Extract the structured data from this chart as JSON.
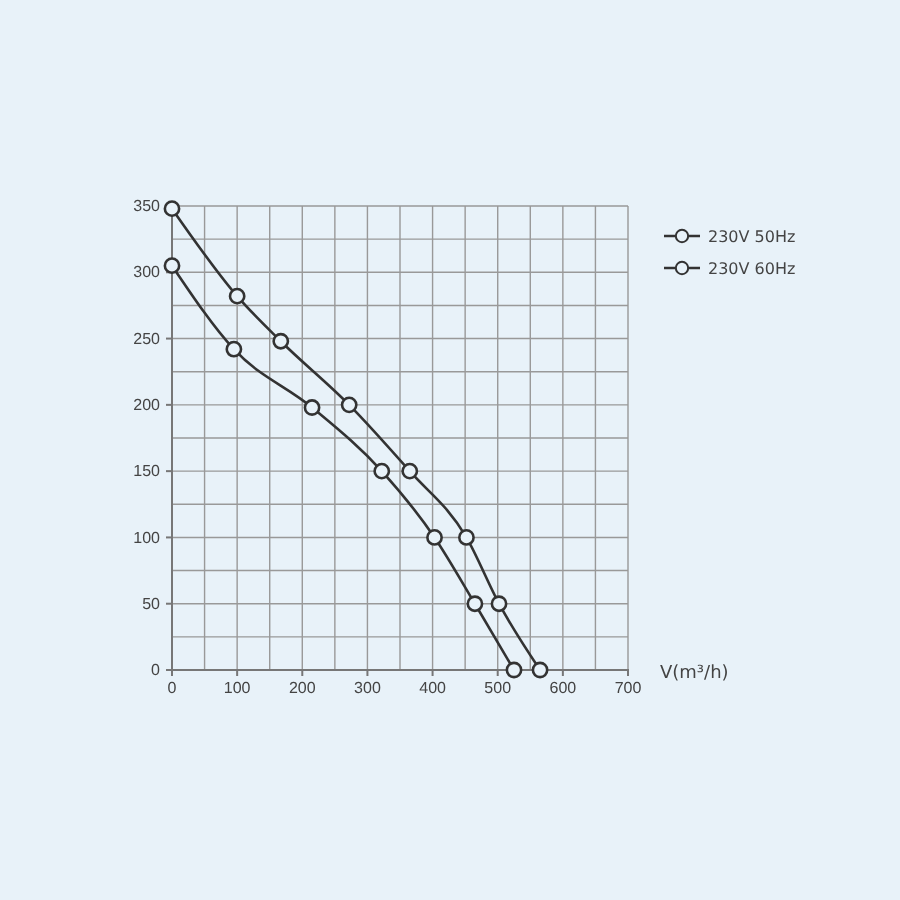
{
  "chart_data": {
    "type": "line",
    "xlabel": "V(m³/h)",
    "xlim": [
      0,
      700
    ],
    "ylim": [
      0,
      350
    ],
    "xticks": [
      0,
      100,
      200,
      300,
      400,
      500,
      600,
      700
    ],
    "yticks": [
      0,
      50,
      100,
      150,
      200,
      250,
      300,
      350
    ],
    "grid": true,
    "legend": "right",
    "marker": "circle",
    "line_style": "solid",
    "series": [
      {
        "name": "230V 50Hz",
        "color": "#333333",
        "x": [
          0,
          95,
          215,
          322,
          403,
          465,
          525
        ],
        "values": [
          305,
          242,
          198,
          150,
          100,
          50,
          0
        ]
      },
      {
        "name": "230V 60Hz",
        "color": "#333333",
        "x": [
          0,
          100,
          167,
          272,
          365,
          452,
          502,
          565
        ],
        "values": [
          348,
          282,
          248,
          200,
          150,
          100,
          50,
          0
        ]
      }
    ]
  }
}
